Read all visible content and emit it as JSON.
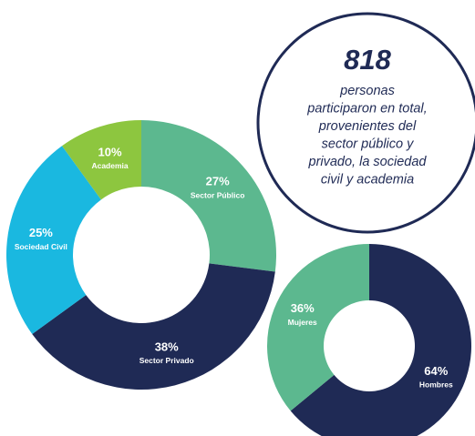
{
  "callout": {
    "number": "818",
    "lines": [
      "personas",
      "participaron en total,",
      "provenientes del",
      "sector público y",
      "privado, la sociedad",
      "civil y academia"
    ]
  },
  "chart_data": [
    {
      "type": "donut",
      "categories": [
        "Sector Público",
        "Sector Privado",
        "Sociedad Civil",
        "Academia"
      ],
      "values": [
        27,
        38,
        25,
        10
      ],
      "value_labels": [
        "27%",
        "38%",
        "25%",
        "10%"
      ],
      "colors": [
        "#5cb88f",
        "#1f2a55",
        "#1ab8e0",
        "#8dc63f"
      ]
    },
    {
      "type": "donut",
      "categories": [
        "Hombres",
        "Mujeres"
      ],
      "values": [
        64,
        36
      ],
      "value_labels": [
        "64%",
        "36%"
      ],
      "colors": [
        "#1f2a55",
        "#5cb88f"
      ]
    }
  ]
}
